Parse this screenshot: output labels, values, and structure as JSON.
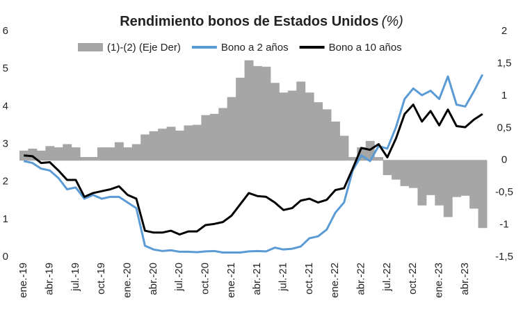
{
  "chart_data": {
    "type": "line",
    "title": "Rendimiento bonos de Estados Unidos",
    "title_unit": "(%)",
    "categories": [
      "ene.-19",
      null,
      null,
      "abr.-19",
      null,
      null,
      "jul.-19",
      null,
      null,
      "oct.-19",
      null,
      null,
      "ene.-20",
      null,
      null,
      "abr.-20",
      null,
      null,
      "jul.-20",
      null,
      null,
      "oct.-20",
      null,
      null,
      "ene.-21",
      null,
      null,
      "abr.-21",
      null,
      null,
      "jul.-21",
      null,
      null,
      "oct.-21",
      null,
      null,
      "ene.-22",
      null,
      null,
      "abr.-22",
      null,
      null,
      "jul.-22",
      null,
      null,
      "oct.-22",
      null,
      null,
      "ene.-23",
      null,
      null,
      "abr.-23",
      null,
      null
    ],
    "series": [
      {
        "name": "(1)-(2) (Eje Der)",
        "color": "#a6a6a6",
        "axis": "y2",
        "values": [
          0.15,
          0.18,
          0.15,
          0.22,
          0.2,
          0.25,
          0.2,
          0.05,
          0.05,
          0.2,
          0.2,
          0.28,
          0.2,
          0.25,
          0.4,
          0.45,
          0.49,
          0.52,
          0.46,
          0.54,
          0.55,
          0.7,
          0.72,
          0.81,
          0.98,
          1.28,
          1.55,
          1.46,
          1.45,
          1.2,
          1.05,
          1.08,
          1.22,
          1.05,
          0.9,
          0.79,
          0.6,
          0.38,
          0.05,
          0.2,
          0.3,
          0.05,
          -0.23,
          -0.3,
          -0.4,
          -0.43,
          -0.7,
          -0.54,
          -0.7,
          -0.88,
          -0.57,
          -0.55,
          -0.75,
          -1.05
        ]
      },
      {
        "name": "Bono a 2 años",
        "color": "#5b9bd5",
        "values": [
          2.55,
          2.5,
          2.35,
          2.3,
          2.1,
          1.8,
          1.85,
          1.55,
          1.65,
          1.55,
          1.6,
          1.6,
          1.45,
          1.3,
          0.3,
          0.2,
          0.16,
          0.18,
          0.14,
          0.14,
          0.13,
          0.15,
          0.16,
          0.12,
          0.12,
          0.12,
          0.15,
          0.16,
          0.15,
          0.25,
          0.2,
          0.22,
          0.28,
          0.5,
          0.55,
          0.73,
          1.18,
          1.45,
          2.3,
          2.7,
          2.55,
          2.95,
          2.88,
          3.45,
          4.2,
          4.48,
          4.3,
          4.42,
          4.2,
          4.8,
          4.05,
          4.0,
          4.4,
          4.85
        ]
      },
      {
        "name": "Bono a 10 años",
        "color": "#000000",
        "values": [
          2.7,
          2.68,
          2.5,
          2.52,
          2.3,
          2.05,
          2.05,
          1.6,
          1.7,
          1.75,
          1.8,
          1.88,
          1.65,
          1.55,
          0.7,
          0.65,
          0.65,
          0.7,
          0.6,
          0.68,
          0.68,
          0.85,
          0.88,
          0.93,
          1.1,
          1.4,
          1.7,
          1.62,
          1.6,
          1.45,
          1.25,
          1.3,
          1.5,
          1.55,
          1.45,
          1.52,
          1.78,
          1.83,
          2.35,
          2.9,
          2.85,
          3.0,
          2.65,
          3.15,
          3.8,
          4.05,
          3.6,
          3.88,
          3.5,
          3.92,
          3.48,
          3.45,
          3.65,
          3.8
        ]
      }
    ],
    "ylim": [
      0,
      6
    ],
    "yticks": [
      0,
      1,
      2,
      3,
      4,
      5,
      6
    ],
    "y2lim": [
      -1.5,
      2
    ],
    "y2ticks": [
      {
        "value": -1.5,
        "label": "-1,5"
      },
      -1,
      {
        "value": -0.5,
        "label": "-0,5"
      },
      0,
      {
        "value": 0.5,
        "label": "0,5"
      },
      1,
      {
        "value": 1.5,
        "label": "1,5"
      },
      2
    ],
    "grid": false,
    "legend": "top"
  }
}
